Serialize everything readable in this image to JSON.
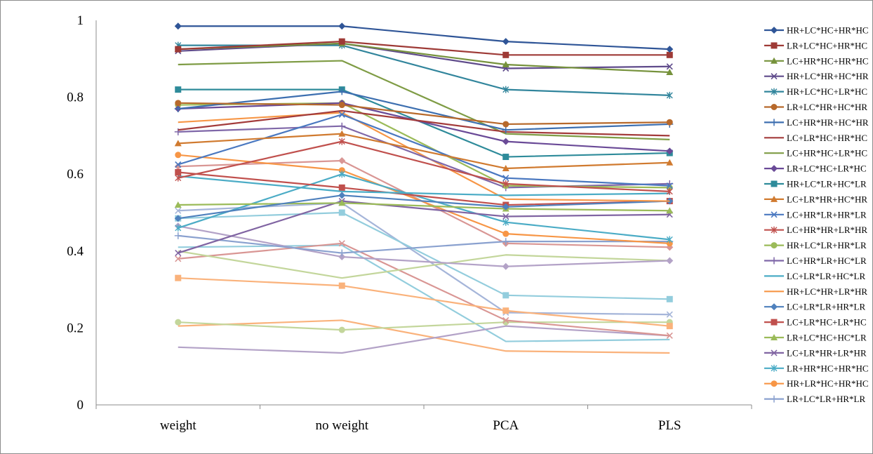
{
  "chart_data": {
    "type": "line",
    "title": "",
    "xlabel": "",
    "ylabel": "",
    "categories": [
      "weight",
      "no weight",
      "PCA",
      "PLS"
    ],
    "ylim": [
      0,
      1
    ],
    "yticks": [
      "0",
      "0.2",
      "0.4",
      "0.6",
      "0.8",
      "1"
    ],
    "grid": false,
    "legend_position": "right",
    "series": [
      {
        "name": "HR+LC*HC+HR*HC",
        "color": "#2f5597",
        "marker": "diamond",
        "values": [
          0.985,
          0.985,
          0.945,
          0.925
        ]
      },
      {
        "name": "LR+LC*HC+HR*HC",
        "color": "#9e3a36",
        "marker": "square",
        "values": [
          0.925,
          0.945,
          0.91,
          0.91
        ]
      },
      {
        "name": "LC+HR*HC+HR*HC",
        "color": "#76923c",
        "marker": "triangle",
        "values": [
          0.925,
          0.94,
          0.885,
          0.865
        ]
      },
      {
        "name": "HR+LC*HR+HC*HR",
        "color": "#5f4b8b",
        "marker": "x",
        "values": [
          0.92,
          0.94,
          0.875,
          0.88
        ]
      },
      {
        "name": "HR+LC*HC+LR*HC",
        "color": "#31859c",
        "marker": "star",
        "values": [
          0.935,
          0.935,
          0.82,
          0.805
        ]
      },
      {
        "name": "LR+LC*HR+HC*HR",
        "color": "#b7692b",
        "marker": "circle",
        "values": [
          0.785,
          0.78,
          0.73,
          0.735
        ]
      },
      {
        "name": "LC+HR*HR+HC*HR",
        "color": "#3d6fb0",
        "marker": "plus",
        "values": [
          0.77,
          0.815,
          0.715,
          0.73
        ]
      },
      {
        "name": "LC+LR*HC+HR*HC",
        "color": "#a33b3b",
        "marker": "none",
        "values": [
          0.715,
          0.765,
          0.71,
          0.7
        ]
      },
      {
        "name": "LC+HR*HC+LR*HC",
        "color": "#7f9c45",
        "marker": "none",
        "values": [
          0.885,
          0.895,
          0.705,
          0.69
        ]
      },
      {
        "name": "LR+LC*HC+LR*HC",
        "color": "#6a4a97",
        "marker": "diamond",
        "values": [
          0.77,
          0.785,
          0.685,
          0.66
        ]
      },
      {
        "name": "HR+LC*LR+HC*LR",
        "color": "#2e8b9a",
        "marker": "square",
        "values": [
          0.82,
          0.82,
          0.645,
          0.655
        ]
      },
      {
        "name": "LC+LR*HR+HC*HR",
        "color": "#d07a2f",
        "marker": "triangle",
        "values": [
          0.68,
          0.705,
          0.615,
          0.63
        ]
      },
      {
        "name": "LC+HR*LR+HR*LR",
        "color": "#4a78c0",
        "marker": "x",
        "values": [
          0.625,
          0.755,
          0.59,
          0.57
        ]
      },
      {
        "name": "LC+HR*HR+LR*HR",
        "color": "#c0504d",
        "marker": "star",
        "values": [
          0.59,
          0.685,
          0.575,
          0.555
        ]
      },
      {
        "name": "HR+LC*LR+HR*LR",
        "color": "#9bbb59",
        "marker": "circle",
        "values": [
          0.78,
          0.785,
          0.57,
          0.565
        ]
      },
      {
        "name": "LC+HR*LR+HC*LR",
        "color": "#7f67a8",
        "marker": "plus",
        "values": [
          0.71,
          0.725,
          0.565,
          0.575
        ]
      },
      {
        "name": "LC+LR*LR+HC*LR",
        "color": "#4bacc6",
        "marker": "none",
        "values": [
          0.595,
          0.555,
          0.545,
          0.55
        ]
      },
      {
        "name": "HR+LC*HR+LR*HR",
        "color": "#f79646",
        "marker": "none",
        "values": [
          0.735,
          0.76,
          0.535,
          0.53
        ]
      },
      {
        "name": "LC+LR*LR+HR*LR",
        "color": "#4f81bd",
        "marker": "diamond",
        "values": [
          0.485,
          0.545,
          0.515,
          0.53
        ]
      },
      {
        "name": "LC+LR*HC+LR*HC",
        "color": "#c0504d",
        "marker": "square",
        "values": [
          0.605,
          0.565,
          0.52,
          0.53
        ]
      },
      {
        "name": "LR+LC*HC+HC*LR",
        "color": "#9bbb59",
        "marker": "triangle",
        "values": [
          0.52,
          0.525,
          0.51,
          0.505
        ]
      },
      {
        "name": "LC+LR*HR+LR*HR",
        "color": "#8064a2",
        "marker": "x",
        "values": [
          0.395,
          0.53,
          0.49,
          0.495
        ]
      },
      {
        "name": "LR+HR*HC+HR*HC",
        "color": "#4bacc6",
        "marker": "star",
        "values": [
          0.46,
          0.6,
          0.475,
          0.43
        ]
      },
      {
        "name": "HR+LR*HC+HR*HC",
        "color": "#f79646",
        "marker": "circle",
        "values": [
          0.65,
          0.61,
          0.445,
          0.42
        ]
      },
      {
        "name": "LR+LC*LR+HR*LR",
        "color": "#8aa1cf",
        "marker": "plus",
        "values": [
          0.44,
          0.395,
          0.425,
          0.425
        ]
      },
      {
        "name": "",
        "color": "#d99694",
        "marker": "diamond",
        "values": [
          0.62,
          0.635,
          0.42,
          0.41
        ]
      },
      {
        "name": "",
        "color": "#b3a2c7",
        "marker": "diamond",
        "values": [
          0.465,
          0.385,
          0.36,
          0.375
        ]
      },
      {
        "name": "",
        "color": "#c3d69b",
        "marker": "none",
        "values": [
          0.4,
          0.33,
          0.39,
          0.375
        ]
      },
      {
        "name": "",
        "color": "#93cddd",
        "marker": "square",
        "values": [
          0.485,
          0.5,
          0.285,
          0.275
        ]
      },
      {
        "name": "",
        "color": "#fab27b",
        "marker": "square",
        "values": [
          0.33,
          0.31,
          0.245,
          0.205
        ]
      },
      {
        "name": "",
        "color": "#d99694",
        "marker": "x",
        "values": [
          0.38,
          0.42,
          0.22,
          0.18
        ]
      },
      {
        "name": "",
        "color": "#a5b5d9",
        "marker": "x",
        "values": [
          0.505,
          0.525,
          0.24,
          0.235
        ]
      },
      {
        "name": "",
        "color": "#c3d69b",
        "marker": "circle",
        "values": [
          0.215,
          0.195,
          0.215,
          0.215
        ]
      },
      {
        "name": "",
        "color": "#b3a2c7",
        "marker": "none",
        "values": [
          0.15,
          0.135,
          0.205,
          0.18
        ]
      },
      {
        "name": "",
        "color": "#93cddd",
        "marker": "none",
        "values": [
          0.41,
          0.415,
          0.165,
          0.17
        ]
      },
      {
        "name": "",
        "color": "#fab27b",
        "marker": "none",
        "values": [
          0.205,
          0.22,
          0.14,
          0.135
        ]
      }
    ]
  }
}
